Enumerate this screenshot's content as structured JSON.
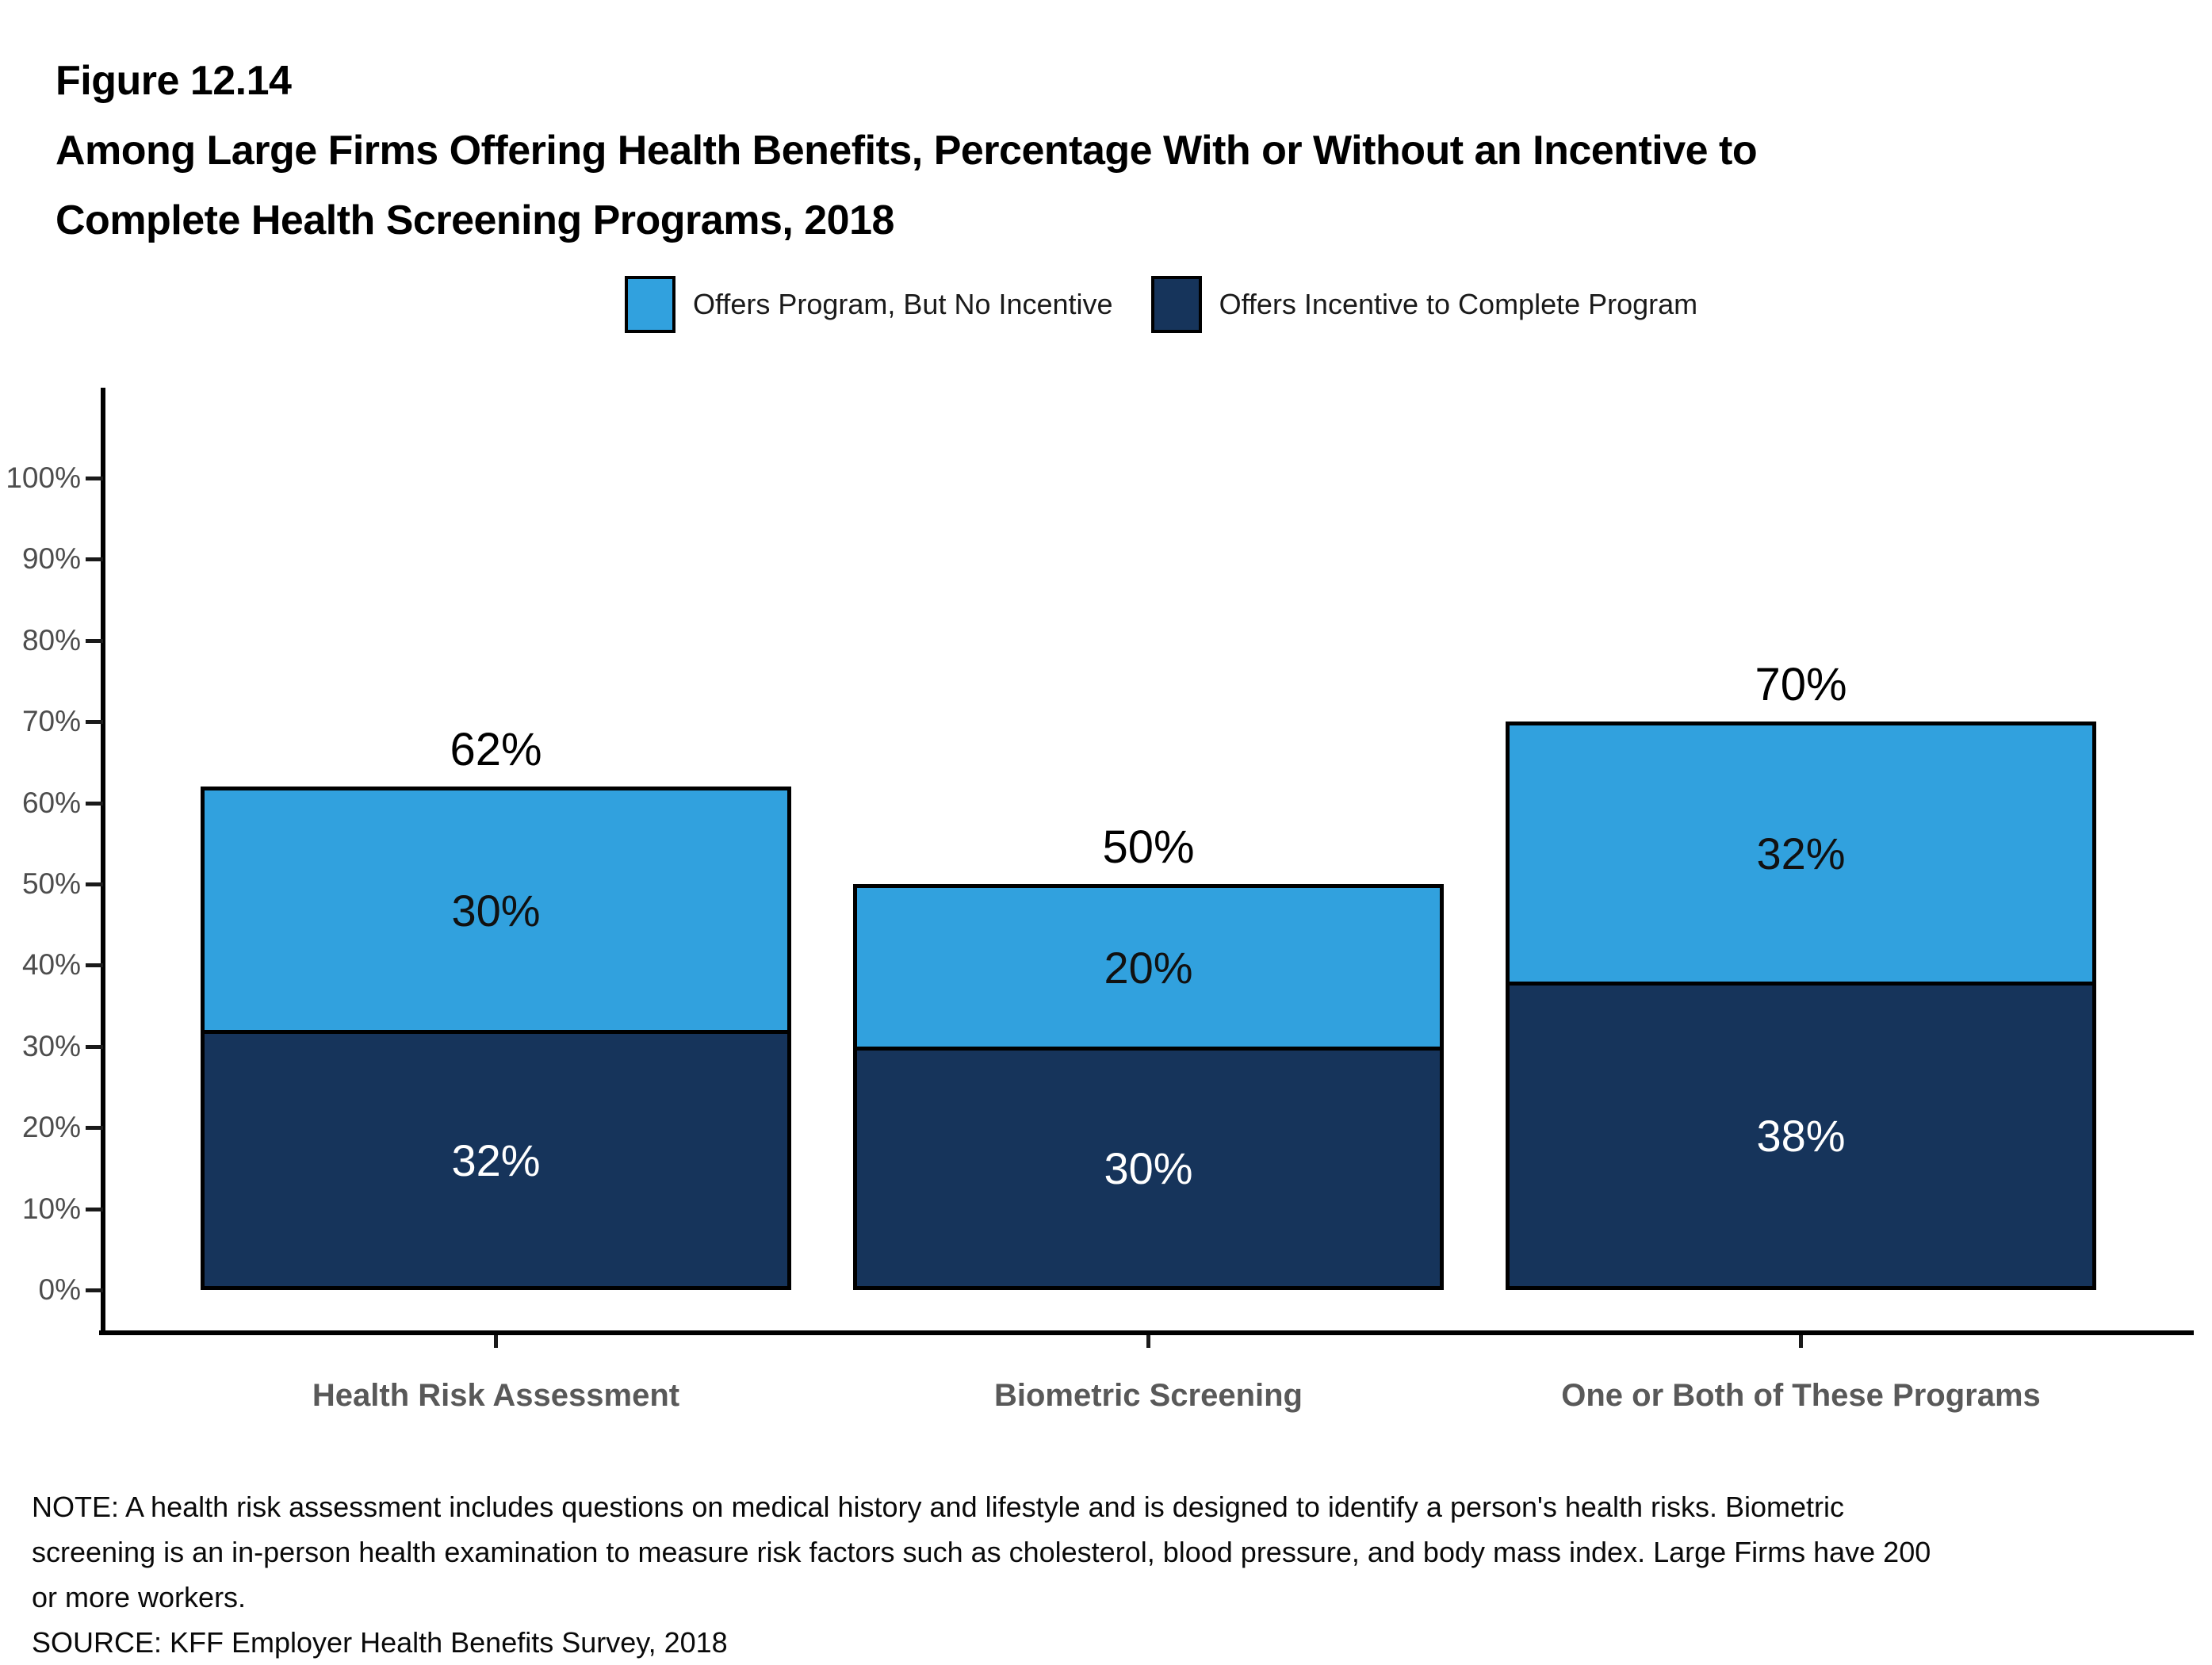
{
  "figure_label": "Figure 12.14",
  "title_line1": "Among Large Firms Offering Health Benefits, Percentage With or Without an Incentive to",
  "title_line2": "Complete Health Screening Programs, 2018",
  "legend": {
    "items": [
      {
        "label": "Offers Program, But No Incentive",
        "color": "#31A1DE"
      },
      {
        "label": "Offers Incentive to Complete Program",
        "color": "#16345B"
      }
    ]
  },
  "chart_data": {
    "type": "bar",
    "subtype": "stacked",
    "categories": [
      "Health Risk Assessment",
      "Biometric Screening",
      "One or Both of These Programs"
    ],
    "series": [
      {
        "name": "Offers Incentive to Complete Program",
        "position": "bottom",
        "color": "#16345B",
        "values": [
          32,
          30,
          38
        ]
      },
      {
        "name": "Offers Program, But No Incentive",
        "position": "top",
        "color": "#31A1DE",
        "values": [
          30,
          20,
          32
        ]
      }
    ],
    "totals": [
      62,
      50,
      70
    ],
    "y_axis": {
      "min": 0,
      "max": 100,
      "tick_step": 10,
      "tick_labels": [
        "0%",
        "10%",
        "20%",
        "30%",
        "40%",
        "50%",
        "60%",
        "70%",
        "80%",
        "90%",
        "100%"
      ]
    },
    "value_label_format": "percent",
    "legend_position": "top-center",
    "grid": false
  },
  "notes": {
    "note_lines": [
      "NOTE: A health risk assessment includes questions on medical history and lifestyle and is designed to identify a person's health risks. Biometric",
      "screening is an in-person health examination to measure risk factors such as cholesterol, blood pressure, and body mass index. Large Firms have 200",
      "or more workers."
    ],
    "source": "SOURCE: KFF Employer Health Benefits Survey, 2018"
  }
}
